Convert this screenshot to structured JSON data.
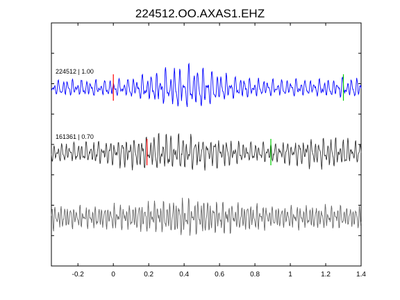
{
  "chart_data": {
    "type": "line",
    "title": "224512.OO.AXAS1.EHZ",
    "xlabel": "",
    "ylabel": "",
    "xlim": [
      -0.35,
      1.4
    ],
    "x_ticks": [
      -0.2,
      0,
      0.2,
      0.4,
      0.6,
      0.8,
      1,
      1.2,
      1.4
    ],
    "x_tick_labels": [
      "-0.2",
      "0",
      "0.2",
      "0.4",
      "0.6",
      "0.8",
      "1",
      "1.2",
      "1.4"
    ],
    "grid": false,
    "traces": [
      {
        "name": "224512 | 1.00",
        "color": "#0000ff",
        "markers": [
          {
            "x": 0.0,
            "color": "#ff0000"
          },
          {
            "x": 1.3,
            "color": "#00cc00"
          }
        ]
      },
      {
        "name": "161361 | 0.70",
        "color": "#333333",
        "markers": [
          {
            "x": 0.19,
            "color": "#ff0000"
          },
          {
            "x": 0.89,
            "color": "#00cc00"
          }
        ]
      },
      {
        "name": "",
        "color": "#666666",
        "markers": []
      }
    ]
  }
}
